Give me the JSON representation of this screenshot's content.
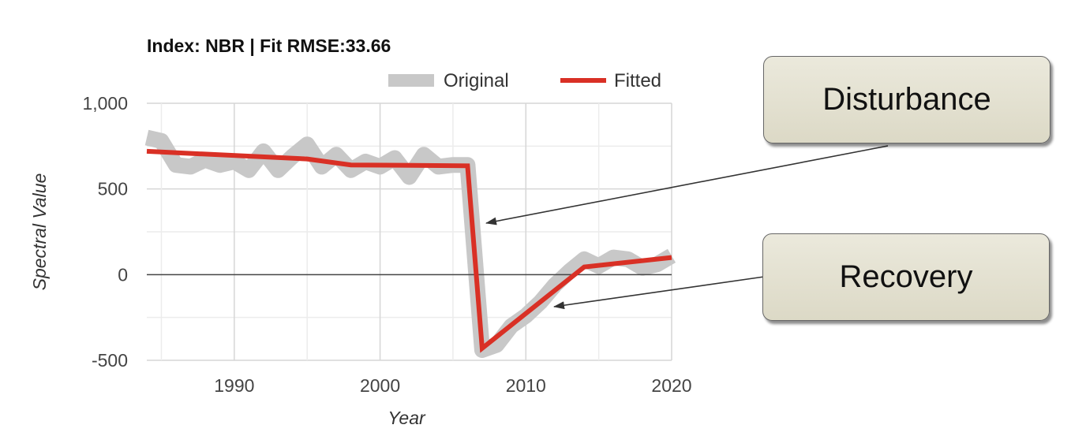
{
  "chart_data": {
    "type": "line",
    "title": "Index: NBR | Fit RMSE:33.66",
    "xlabel": "Year",
    "ylabel": "Spectral Value",
    "xlim": [
      1984,
      2020
    ],
    "ylim": [
      -500,
      1000
    ],
    "x_ticks": [
      1990,
      2000,
      2010,
      2020
    ],
    "y_ticks": [
      -500,
      0,
      500,
      1000
    ],
    "x_tick_labels": [
      "1990",
      "2000",
      "2010",
      "2020"
    ],
    "y_tick_labels": [
      "-500",
      "0",
      "500",
      "1,000"
    ],
    "legend_position": "top-right",
    "series": [
      {
        "name": "Original",
        "color": "#c8c8c8",
        "x": [
          1984,
          1985,
          1986,
          1987,
          1988,
          1989,
          1990,
          1991,
          1992,
          1993,
          1994,
          1995,
          1996,
          1997,
          1998,
          1999,
          2000,
          2001,
          2002,
          2003,
          2004,
          2005,
          2006,
          2007,
          2008,
          2009,
          2010,
          2011,
          2012,
          2013,
          2014,
          2015,
          2016,
          2017,
          2018,
          2019,
          2020
        ],
        "values": [
          800,
          780,
          640,
          630,
          670,
          640,
          660,
          610,
          720,
          610,
          690,
          760,
          630,
          700,
          610,
          660,
          630,
          680,
          570,
          700,
          630,
          640,
          640,
          -440,
          -410,
          -300,
          -240,
          -160,
          -60,
          20,
          90,
          50,
          100,
          90,
          40,
          60,
          110
        ]
      },
      {
        "name": "Fitted",
        "color": "#d93025",
        "x": [
          1984,
          1995,
          1998,
          2006,
          2007,
          2014,
          2020
        ],
        "values": [
          720,
          675,
          640,
          635,
          -430,
          45,
          100
        ]
      }
    ]
  },
  "annotations": {
    "disturbance": "Disturbance",
    "recovery": "Recovery"
  }
}
